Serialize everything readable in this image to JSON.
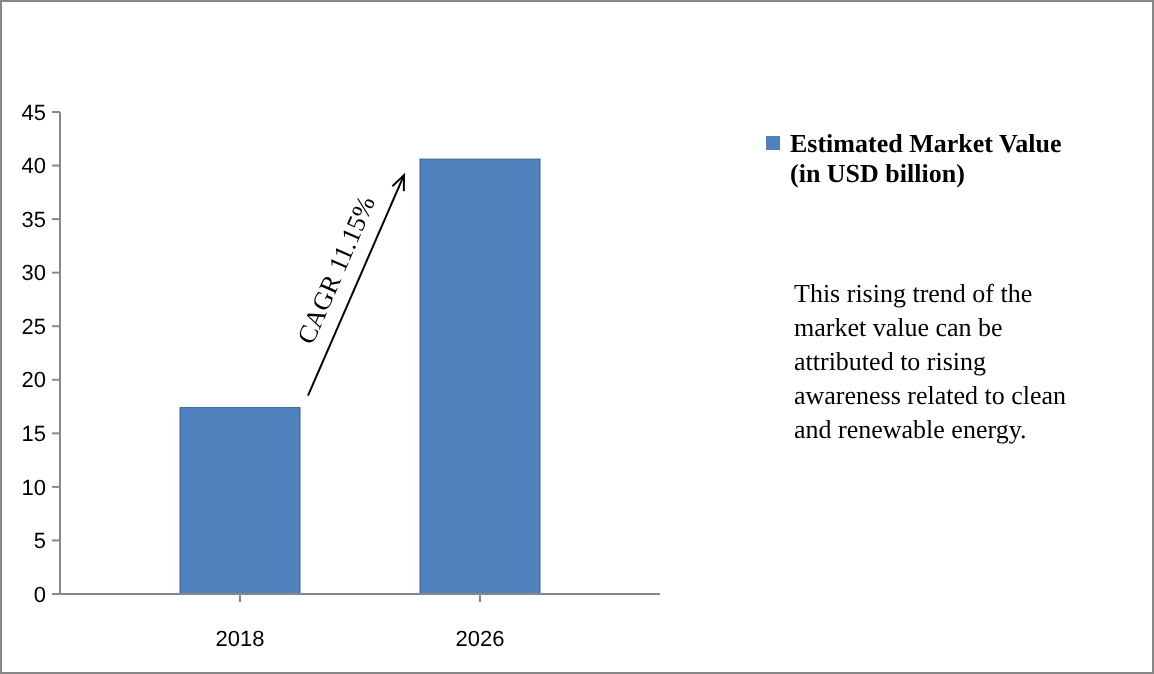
{
  "chart_data": {
    "type": "bar",
    "categories": [
      "2018",
      "2026"
    ],
    "series": [
      {
        "name": "Estimated Market Value (in USD billion)",
        "color": "#4f81bd",
        "values": [
          17.4,
          40.6
        ]
      }
    ],
    "ylim": [
      0,
      45
    ],
    "yticks": [
      0,
      5,
      10,
      15,
      20,
      25,
      30,
      35,
      40,
      45
    ],
    "grid": false,
    "legend": "right",
    "annotations": [
      "CAGR 11.15%",
      "This rising trend of the market value can be attributed to rising awareness related to clean and renewable energy."
    ]
  }
}
